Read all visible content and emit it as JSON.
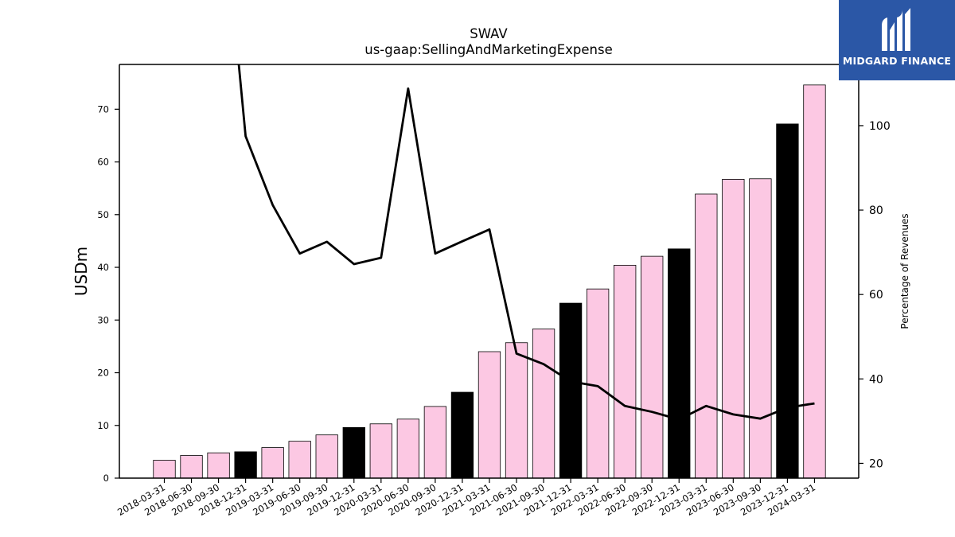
{
  "brand": {
    "name": "MIDGARD FINANCE",
    "bg_color": "#2b57a6"
  },
  "chart_data": {
    "type": "bar",
    "title": "SWAV",
    "subtitle": "us-gaap:SellingAndMarketingExpense",
    "ylabel": "USDm",
    "y2label": "Percentage of Revenues",
    "ylim": [
      0,
      78.5
    ],
    "y2lim": [
      16.5,
      114.5
    ],
    "yticks": [
      0,
      10,
      20,
      30,
      40,
      50,
      60,
      70
    ],
    "y2ticks": [
      20,
      40,
      60,
      80,
      100
    ],
    "grid": false,
    "colors": {
      "quarter_bar": "#fcc8e3",
      "year_end_bar": "#000000",
      "line": "#000000"
    },
    "categories": [
      "2018-03-31",
      "2018-06-30",
      "2018-09-30",
      "2018-12-31",
      "2019-03-31",
      "2019-06-30",
      "2019-09-30",
      "2019-12-31",
      "2020-03-31",
      "2020-06-30",
      "2020-09-30",
      "2020-12-31",
      "2021-03-31",
      "2021-06-30",
      "2021-09-30",
      "2021-12-31",
      "2022-03-31",
      "2022-06-30",
      "2022-09-30",
      "2022-12-31",
      "2023-03-31",
      "2023-06-30",
      "2023-09-30",
      "2023-12-31",
      "2024-03-31"
    ],
    "series": [
      {
        "type": "bar",
        "axis": "left",
        "values": [
          3.4,
          4.3,
          4.8,
          5.0,
          5.8,
          7.0,
          8.2,
          9.6,
          10.3,
          11.2,
          13.6,
          16.3,
          24.0,
          25.7,
          28.3,
          33.2,
          35.9,
          40.4,
          42.1,
          43.5,
          53.9,
          56.7,
          56.8,
          67.2,
          74.6
        ],
        "year_end": [
          false,
          false,
          false,
          true,
          false,
          false,
          false,
          true,
          false,
          false,
          false,
          true,
          false,
          false,
          false,
          true,
          false,
          false,
          false,
          true,
          false,
          false,
          false,
          true,
          false
        ]
      },
      {
        "type": "line",
        "axis": "right",
        "values": [
          null,
          null,
          165,
          97.5,
          81.2,
          69.7,
          72.5,
          67.2,
          68.7,
          108.8,
          69.7,
          72.6,
          75.4,
          46,
          43.5,
          39.4,
          38.3,
          33.6,
          32.2,
          30.4,
          33.6,
          31.6,
          30.6,
          33.2,
          34.2
        ]
      }
    ]
  }
}
